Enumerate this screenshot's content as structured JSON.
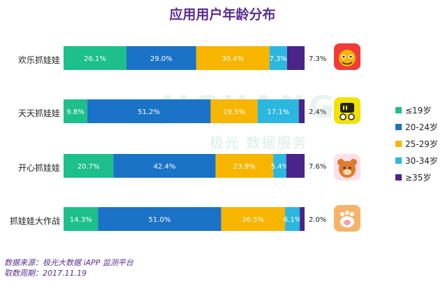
{
  "title": "应用用户年龄分布",
  "watermark": {
    "main": "JIGUANG",
    "sub": "极光 数据服务"
  },
  "legend": [
    {
      "label": "≤19岁",
      "color": "#1dbf8a"
    },
    {
      "label": "20-24岁",
      "color": "#1a73c6"
    },
    {
      "label": "25-29岁",
      "color": "#f7b500"
    },
    {
      "label": "30-34岁",
      "color": "#2bb7e0"
    },
    {
      "label": "≥35岁",
      "color": "#4a2488"
    }
  ],
  "chart_data": {
    "type": "bar",
    "orientation": "horizontal",
    "stacked": true,
    "categories": [
      "欢乐抓娃娃",
      "天天抓娃娃",
      "开心抓娃娃",
      "抓娃娃大作战"
    ],
    "series": [
      {
        "name": "≤19岁",
        "values": [
          26.1,
          9.8,
          20.7,
          14.3
        ]
      },
      {
        "name": "20-24岁",
        "values": [
          29.0,
          51.2,
          42.4,
          51.0
        ]
      },
      {
        "name": "25-29岁",
        "values": [
          30.4,
          19.5,
          23.9,
          26.5
        ]
      },
      {
        "name": "30-34岁",
        "values": [
          7.3,
          17.1,
          5.4,
          6.1
        ]
      },
      {
        "name": "≥35岁",
        "values": [
          7.3,
          2.4,
          7.6,
          2.0
        ]
      }
    ],
    "segment_labels": [
      [
        "26.1%",
        "29.0%",
        "30.4%",
        "7.3%",
        ""
      ],
      [
        "9.8%",
        "51.2%",
        "19.5%",
        "17.1%",
        ""
      ],
      [
        "20.7%",
        "42.4%",
        "23.9%",
        "5.4%",
        ""
      ],
      [
        "14.3%",
        "51.0%",
        "26.5%",
        "6.1%",
        ""
      ]
    ],
    "tail_labels": [
      "7.3%",
      "2.4%",
      "7.6%",
      "2.0%"
    ],
    "legend_position": "right"
  },
  "footer": {
    "source": "数据来源：极光大数据 iAPP 监测平台",
    "date": "取数周期：2017.11.19"
  }
}
